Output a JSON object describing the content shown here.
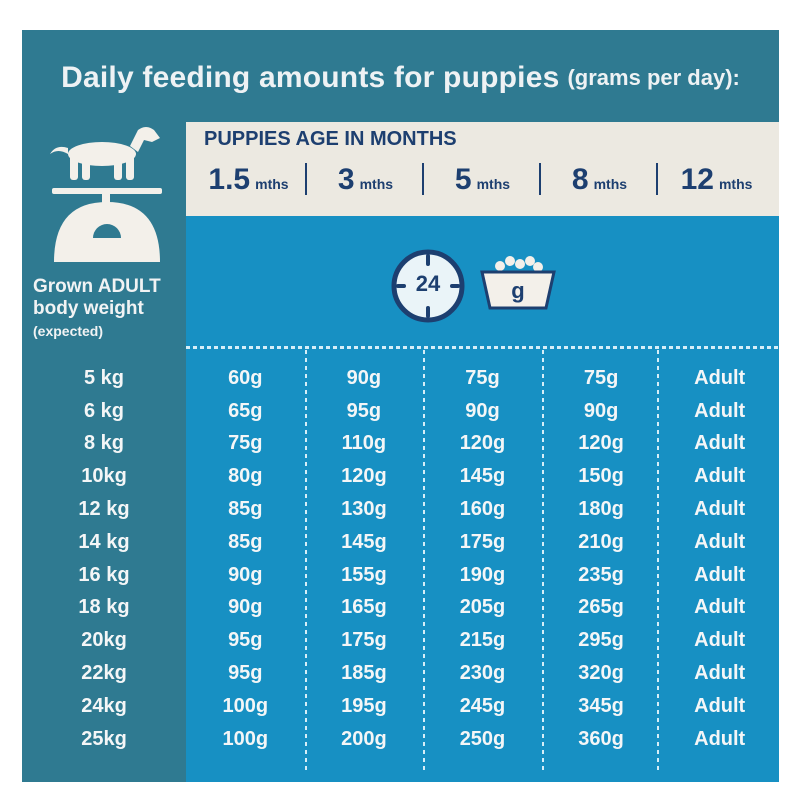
{
  "title": {
    "main": "Daily feeding amounts for puppies",
    "sub": "(grams per day):"
  },
  "left": {
    "label_line1": "Grown ADULT",
    "label_line2": "body weight",
    "label_sub": "(expected)",
    "icon": "dog-on-scale-icon"
  },
  "header": {
    "title": "PUPPIES AGE IN MONTHS",
    "ages": [
      {
        "num": "1.5",
        "unit": "mths"
      },
      {
        "num": "3",
        "unit": "mths"
      },
      {
        "num": "5",
        "unit": "mths"
      },
      {
        "num": "8",
        "unit": "mths"
      },
      {
        "num": "12",
        "unit": "mths"
      }
    ]
  },
  "icons": {
    "clock_label": "24",
    "bowl_label": "g",
    "clock_icon": "clock-24h-icon",
    "bowl_icon": "food-bowl-icon"
  },
  "rows": [
    {
      "weight": "5 kg",
      "values": [
        "60g",
        "90g",
        "75g",
        "75g",
        "Adult"
      ]
    },
    {
      "weight": "6 kg",
      "values": [
        "65g",
        "95g",
        "90g",
        "90g",
        "Adult"
      ]
    },
    {
      "weight": "8 kg",
      "values": [
        "75g",
        "110g",
        "120g",
        "120g",
        "Adult"
      ]
    },
    {
      "weight": "10kg",
      "values": [
        "80g",
        "120g",
        "145g",
        "150g",
        "Adult"
      ]
    },
    {
      "weight": "12 kg",
      "values": [
        "85g",
        "130g",
        "160g",
        "180g",
        "Adult"
      ]
    },
    {
      "weight": "14 kg",
      "values": [
        "85g",
        "145g",
        "175g",
        "210g",
        "Adult"
      ]
    },
    {
      "weight": "16 kg",
      "values": [
        "90g",
        "155g",
        "190g",
        "235g",
        "Adult"
      ]
    },
    {
      "weight": "18 kg",
      "values": [
        "90g",
        "165g",
        "205g",
        "265g",
        "Adult"
      ]
    },
    {
      "weight": "20kg",
      "values": [
        "95g",
        "175g",
        "215g",
        "295g",
        "Adult"
      ]
    },
    {
      "weight": "22kg",
      "values": [
        "95g",
        "185g",
        "230g",
        "320g",
        "Adult"
      ]
    },
    {
      "weight": "24kg",
      "values": [
        "100g",
        "195g",
        "245g",
        "345g",
        "Adult"
      ]
    },
    {
      "weight": "25kg",
      "values": [
        "100g",
        "200g",
        "250g",
        "360g",
        "Adult"
      ]
    }
  ],
  "colors": {
    "frame": "#2f7a91",
    "data_area": "#1790c3",
    "header_bg": "#ece9e1",
    "navy": "#1d3f70"
  }
}
